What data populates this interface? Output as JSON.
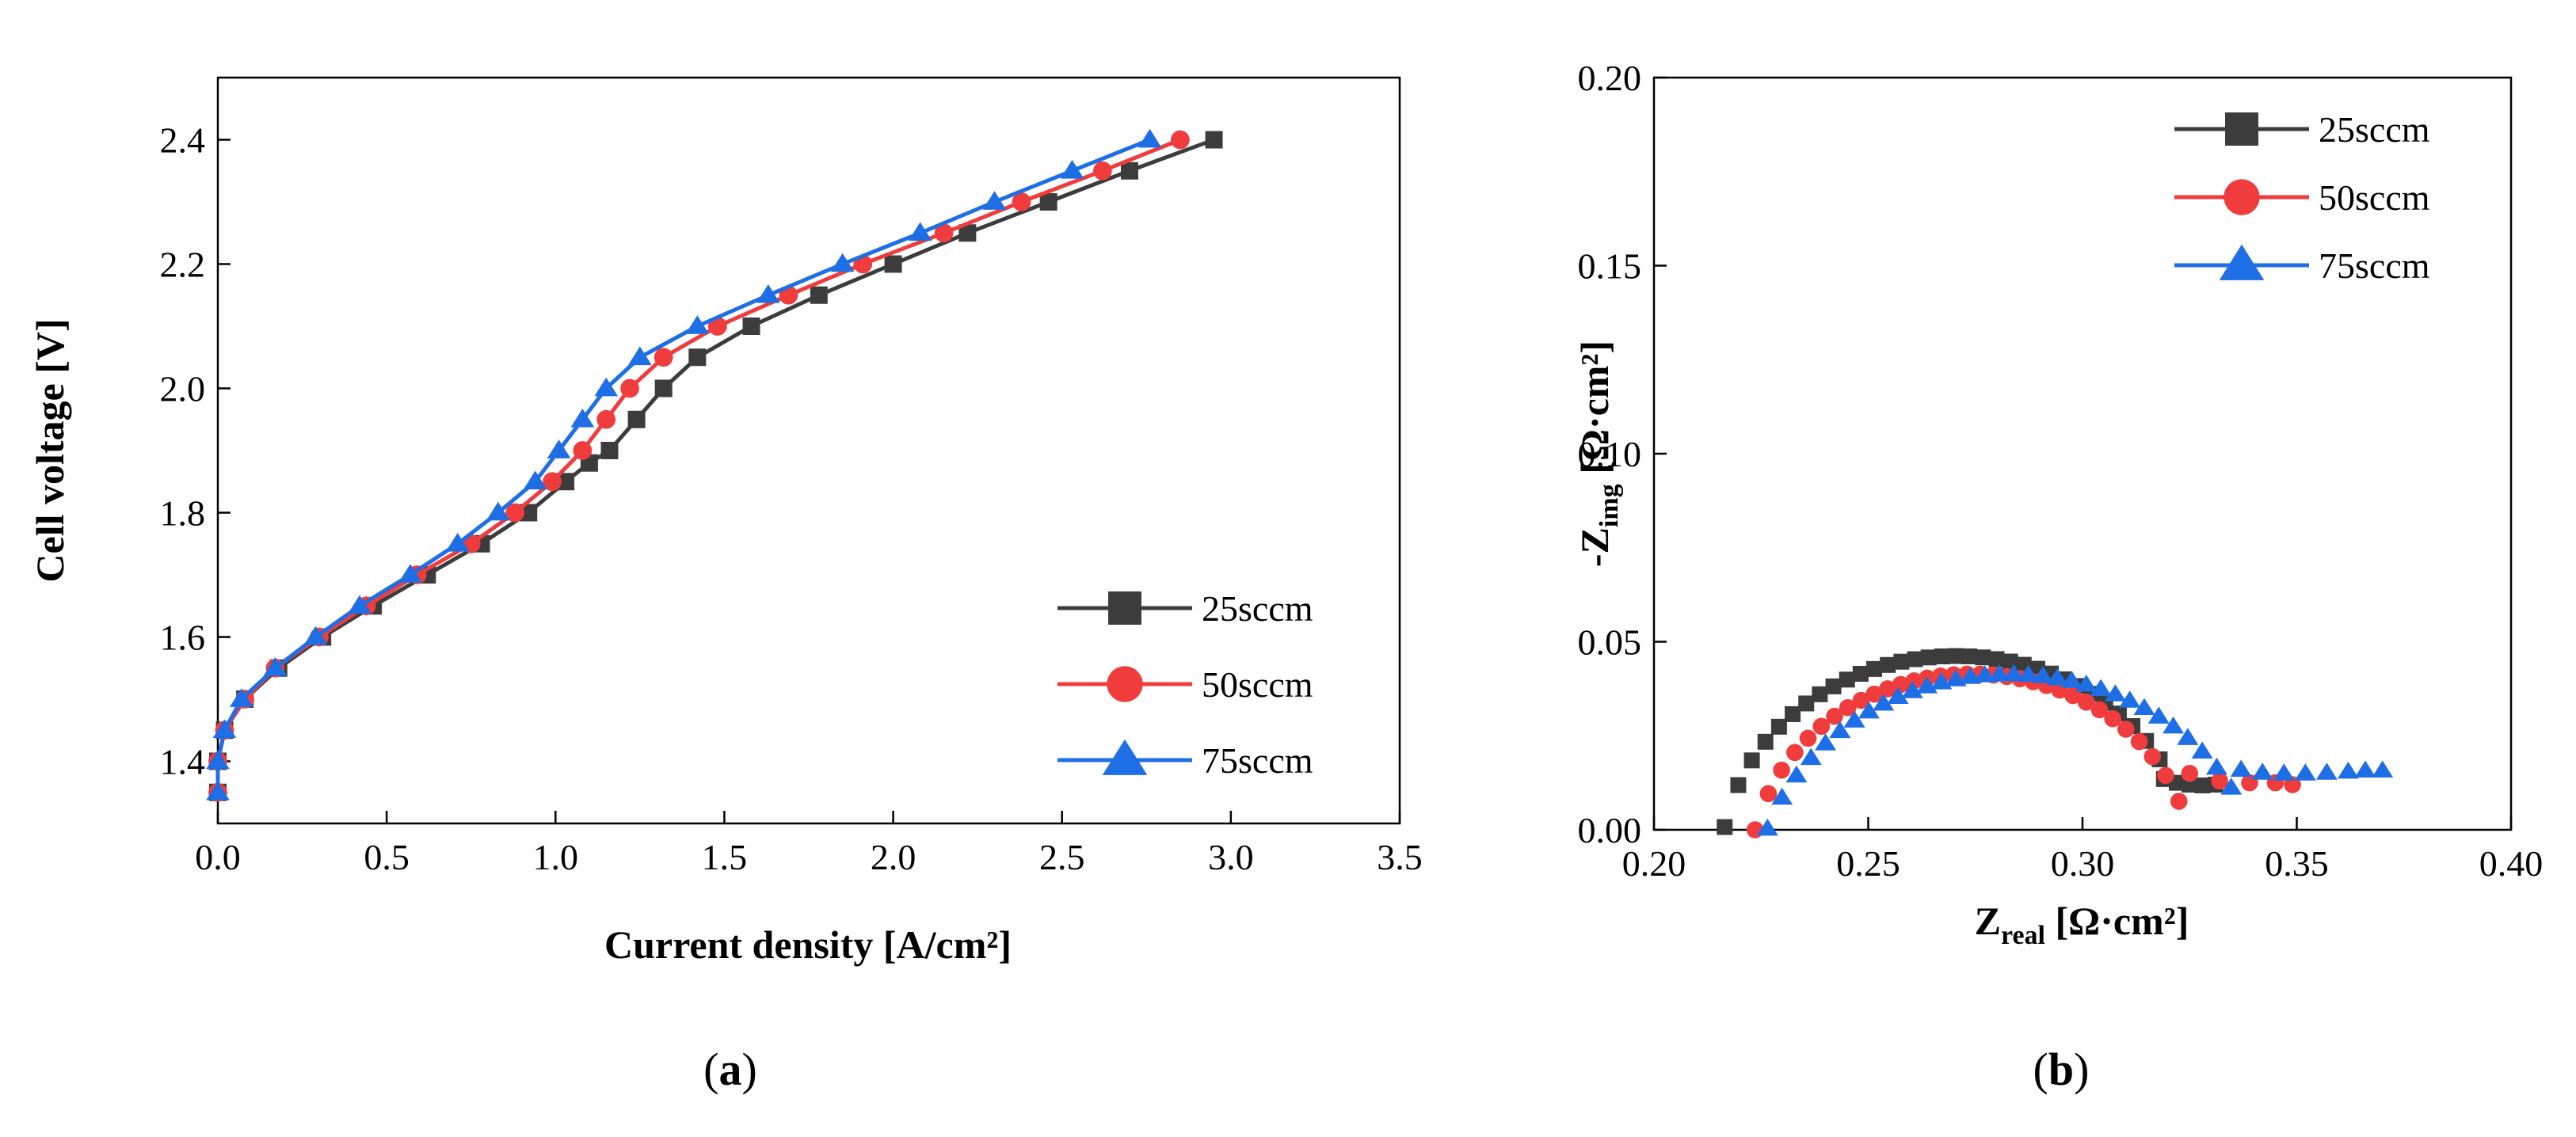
{
  "chart_data": [
    {
      "type": "line",
      "panel_label": "a",
      "xlabel": "Current density [A/cm²]",
      "ylabel": "Cell voltage [V]",
      "xlim": [
        0.0,
        3.5
      ],
      "ylim": [
        1.3,
        2.5
      ],
      "xticks": [
        "0.0",
        "0.5",
        "1.0",
        "1.5",
        "2.0",
        "2.5",
        "3.0",
        "3.5"
      ],
      "yticks": [
        "1.4",
        "1.6",
        "1.8",
        "2.0",
        "2.2",
        "2.4"
      ],
      "grid": false,
      "legend_position": "bottom-right",
      "series": [
        {
          "name": "25sccm",
          "color": "#3c3c3c",
          "marker": "square",
          "points": [
            [
              0.0,
              1.35
            ],
            [
              0.0,
              1.4
            ],
            [
              0.02,
              1.45
            ],
            [
              0.08,
              1.5
            ],
            [
              0.18,
              1.55
            ],
            [
              0.31,
              1.6
            ],
            [
              0.46,
              1.65
            ],
            [
              0.62,
              1.7
            ],
            [
              0.78,
              1.75
            ],
            [
              0.92,
              1.8
            ],
            [
              1.03,
              1.85
            ],
            [
              1.1,
              1.88
            ],
            [
              1.16,
              1.9
            ],
            [
              1.24,
              1.95
            ],
            [
              1.32,
              2.0
            ],
            [
              1.42,
              2.05
            ],
            [
              1.58,
              2.1
            ],
            [
              1.78,
              2.15
            ],
            [
              2.0,
              2.2
            ],
            [
              2.22,
              2.25
            ],
            [
              2.46,
              2.3
            ],
            [
              2.7,
              2.35
            ],
            [
              2.95,
              2.4
            ]
          ]
        },
        {
          "name": "50sccm",
          "color": "#f03c3c",
          "marker": "circle",
          "points": [
            [
              0.0,
              1.35
            ],
            [
              0.0,
              1.4
            ],
            [
              0.02,
              1.45
            ],
            [
              0.08,
              1.5
            ],
            [
              0.17,
              1.55
            ],
            [
              0.3,
              1.6
            ],
            [
              0.44,
              1.65
            ],
            [
              0.59,
              1.7
            ],
            [
              0.75,
              1.75
            ],
            [
              0.88,
              1.8
            ],
            [
              0.99,
              1.85
            ],
            [
              1.08,
              1.9
            ],
            [
              1.15,
              1.95
            ],
            [
              1.22,
              2.0
            ],
            [
              1.32,
              2.05
            ],
            [
              1.48,
              2.1
            ],
            [
              1.69,
              2.15
            ],
            [
              1.91,
              2.2
            ],
            [
              2.15,
              2.25
            ],
            [
              2.38,
              2.3
            ],
            [
              2.62,
              2.35
            ],
            [
              2.85,
              2.4
            ]
          ]
        },
        {
          "name": "75sccm",
          "color": "#1e6ee6",
          "marker": "triangle",
          "points": [
            [
              0.0,
              1.35
            ],
            [
              0.0,
              1.4
            ],
            [
              0.02,
              1.45
            ],
            [
              0.07,
              1.5
            ],
            [
              0.17,
              1.55
            ],
            [
              0.29,
              1.6
            ],
            [
              0.42,
              1.65
            ],
            [
              0.57,
              1.7
            ],
            [
              0.71,
              1.75
            ],
            [
              0.83,
              1.8
            ],
            [
              0.94,
              1.85
            ],
            [
              1.01,
              1.9
            ],
            [
              1.08,
              1.95
            ],
            [
              1.15,
              2.0
            ],
            [
              1.25,
              2.05
            ],
            [
              1.42,
              2.1
            ],
            [
              1.63,
              2.15
            ],
            [
              1.85,
              2.2
            ],
            [
              2.08,
              2.25
            ],
            [
              2.3,
              2.3
            ],
            [
              2.53,
              2.35
            ],
            [
              2.76,
              2.4
            ]
          ]
        }
      ]
    },
    {
      "type": "scatter",
      "panel_label": "b",
      "xlabel": "Z_real [Ω·cm²]",
      "ylabel": "-Z_img [Ω·cm²]",
      "xlim": [
        0.2,
        0.4
      ],
      "ylim": [
        0.0,
        0.2
      ],
      "xticks": [
        "0.20",
        "0.25",
        "0.30",
        "0.35",
        "0.40"
      ],
      "yticks": [
        "0.00",
        "0.05",
        "0.10",
        "0.15",
        "0.20"
      ],
      "grid": false,
      "legend_position": "top-right",
      "series": [
        {
          "name": "25sccm",
          "color": "#3c3c3c",
          "marker": "square",
          "center": [
            0.2705,
            -0.0086
          ],
          "radius": 0.0548,
          "arc_start": 0.2165,
          "arc_end": 0.318,
          "tail": [
            [
              0.319,
              0.0135
            ],
            [
              0.322,
              0.0125
            ],
            [
              0.325,
              0.012
            ],
            [
              0.328,
              0.0118
            ],
            [
              0.331,
              0.012
            ]
          ]
        },
        {
          "name": "50sccm",
          "color": "#f03c3c",
          "marker": "circle",
          "center": [
            0.2742,
            -0.01
          ],
          "radius": 0.0514,
          "arc_start": 0.2236,
          "arc_end": 0.3225,
          "tail": [
            [
              0.325,
              0.015
            ],
            [
              0.332,
              0.013
            ],
            [
              0.339,
              0.0125
            ],
            [
              0.345,
              0.0125
            ],
            [
              0.349,
              0.012
            ]
          ]
        },
        {
          "name": "75sccm",
          "color": "#1e6ee6",
          "marker": "triangle",
          "center": [
            0.283,
            -0.018
          ],
          "radius": 0.0594,
          "arc_start": 0.2265,
          "arc_end": 0.3347,
          "tail": [
            [
              0.337,
              0.016
            ],
            [
              0.342,
              0.0152
            ],
            [
              0.347,
              0.015
            ],
            [
              0.352,
              0.015
            ],
            [
              0.357,
              0.0152
            ],
            [
              0.362,
              0.0155
            ],
            [
              0.366,
              0.0158
            ],
            [
              0.37,
              0.0158
            ]
          ]
        }
      ]
    }
  ]
}
